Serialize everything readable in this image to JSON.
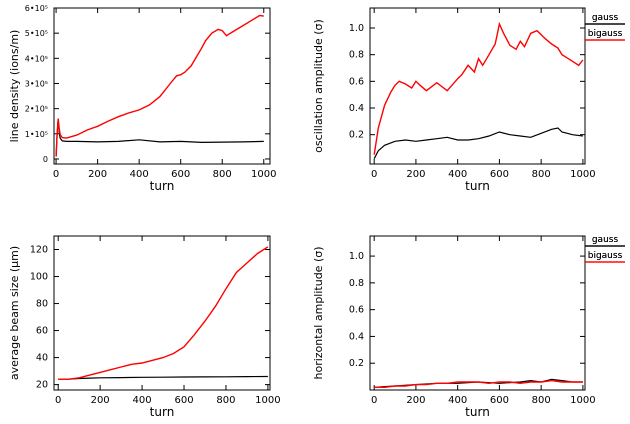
{
  "chart_data": [
    {
      "type": "line",
      "xlabel": "turn",
      "ylabel": "line density (ions/m)",
      "xlim": [
        -10,
        1030
      ],
      "ylim": [
        -20000,
        600000
      ],
      "xticks": [
        0,
        200,
        400,
        600,
        800,
        1000
      ],
      "yticks": [
        {
          "value": 0,
          "label": "0"
        },
        {
          "value": 100000,
          "label": "1•10⁵"
        },
        {
          "value": 200000,
          "label": "2•10⁵"
        },
        {
          "value": 300000,
          "label": "3•10⁵"
        },
        {
          "value": 400000,
          "label": "4•10⁵"
        },
        {
          "value": 500000,
          "label": "5•10⁵"
        },
        {
          "value": 600000,
          "label": "6•10⁵"
        }
      ],
      "legend_position": "right",
      "series": [
        {
          "name": "gauss",
          "color": "#000000",
          "x": [
            0,
            5,
            10,
            15,
            20,
            30,
            50,
            100,
            200,
            300,
            400,
            500,
            600,
            700,
            800,
            900,
            1000
          ],
          "y": [
            10000,
            95000,
            160000,
            105000,
            82000,
            72000,
            70000,
            70000,
            68000,
            70000,
            76000,
            68000,
            70000,
            66000,
            67000,
            68000,
            70000
          ]
        },
        {
          "name": "bigauss",
          "color": "#ff0000",
          "x": [
            0,
            5,
            10,
            15,
            20,
            30,
            50,
            100,
            150,
            200,
            250,
            300,
            350,
            400,
            450,
            500,
            550,
            580,
            600,
            620,
            650,
            700,
            720,
            750,
            780,
            800,
            820,
            850,
            900,
            950,
            980,
            1000
          ],
          "y": [
            10000,
            100000,
            160000,
            120000,
            97000,
            85000,
            83000,
            95000,
            115000,
            130000,
            150000,
            168000,
            183000,
            195000,
            215000,
            248000,
            300000,
            330000,
            335000,
            345000,
            370000,
            440000,
            470000,
            500000,
            515000,
            510000,
            490000,
            505000,
            530000,
            555000,
            570000,
            568000
          ]
        }
      ]
    },
    {
      "type": "line",
      "xlabel": "turn",
      "ylabel": "oscillation amplitude (σ)",
      "xlim": [
        -20,
        1010
      ],
      "ylim": [
        -0.02,
        1.15
      ],
      "xticks": [
        0,
        200,
        400,
        600,
        800,
        1000
      ],
      "yticks": [
        {
          "value": 0.2,
          "label": "0.2"
        },
        {
          "value": 0.4,
          "label": "0.4"
        },
        {
          "value": 0.6,
          "label": "0.6"
        },
        {
          "value": 0.8,
          "label": "0.8"
        },
        {
          "value": 1.0,
          "label": "1.0"
        }
      ],
      "legend_position": "right",
      "series": [
        {
          "name": "gauss",
          "color": "#000000",
          "x": [
            0,
            20,
            50,
            100,
            150,
            200,
            250,
            300,
            350,
            400,
            450,
            500,
            550,
            600,
            650,
            700,
            750,
            800,
            850,
            880,
            900,
            950,
            1000
          ],
          "y": [
            0.02,
            0.08,
            0.12,
            0.15,
            0.16,
            0.15,
            0.16,
            0.17,
            0.18,
            0.16,
            0.16,
            0.17,
            0.19,
            0.22,
            0.2,
            0.19,
            0.18,
            0.21,
            0.24,
            0.25,
            0.22,
            0.2,
            0.19
          ]
        },
        {
          "name": "bigauss",
          "color": "#ff0000",
          "x": [
            0,
            20,
            50,
            80,
            100,
            120,
            150,
            180,
            200,
            220,
            250,
            300,
            350,
            400,
            420,
            450,
            480,
            500,
            520,
            550,
            580,
            600,
            620,
            650,
            680,
            700,
            720,
            750,
            780,
            800,
            820,
            850,
            880,
            900,
            920,
            950,
            980,
            1000
          ],
          "y": [
            0.05,
            0.25,
            0.42,
            0.52,
            0.57,
            0.6,
            0.58,
            0.55,
            0.6,
            0.57,
            0.53,
            0.59,
            0.53,
            0.62,
            0.65,
            0.72,
            0.67,
            0.77,
            0.72,
            0.8,
            0.88,
            1.03,
            0.96,
            0.87,
            0.84,
            0.9,
            0.86,
            0.96,
            0.98,
            0.95,
            0.92,
            0.88,
            0.85,
            0.8,
            0.78,
            0.75,
            0.72,
            0.76
          ]
        }
      ]
    },
    {
      "type": "line",
      "xlabel": "turn",
      "ylabel": "average beam size (μm)",
      "xlim": [
        -20,
        1010
      ],
      "ylim": [
        16,
        130
      ],
      "xticks": [
        0,
        200,
        400,
        600,
        800,
        1000
      ],
      "yticks": [
        {
          "value": 20,
          "label": "20"
        },
        {
          "value": 40,
          "label": "40"
        },
        {
          "value": 60,
          "label": "60"
        },
        {
          "value": 80,
          "label": "80"
        },
        {
          "value": 100,
          "label": "100"
        },
        {
          "value": 120,
          "label": "120"
        }
      ],
      "legend_position": "right",
      "series": [
        {
          "name": "gauss",
          "color": "#000000",
          "x": [
            0,
            50,
            100,
            150,
            200,
            300,
            400,
            500,
            600,
            700,
            800,
            900,
            1000
          ],
          "y": [
            24,
            24,
            24.5,
            24.8,
            25,
            25.2,
            25.4,
            25.5,
            25.6,
            25.7,
            25.8,
            25.9,
            26
          ]
        },
        {
          "name": "bigauss",
          "color": "#ff0000",
          "x": [
            0,
            50,
            100,
            150,
            200,
            250,
            300,
            350,
            400,
            450,
            500,
            550,
            600,
            650,
            700,
            750,
            800,
            850,
            900,
            950,
            1000
          ],
          "y": [
            24,
            24,
            25,
            27,
            29,
            31,
            33,
            35,
            36,
            38,
            40,
            43,
            48,
            57,
            67,
            78,
            91,
            103,
            110,
            117,
            122
          ]
        }
      ]
    },
    {
      "type": "line",
      "xlabel": "turn",
      "ylabel": "horizontal amplitude (σ)",
      "xlim": [
        -20,
        1010
      ],
      "ylim": [
        0,
        1.15
      ],
      "xticks": [
        0,
        200,
        400,
        600,
        800,
        1000
      ],
      "yticks": [
        {
          "value": 0.2,
          "label": "0.2"
        },
        {
          "value": 0.4,
          "label": "0.4"
        },
        {
          "value": 0.6,
          "label": "0.6"
        },
        {
          "value": 0.8,
          "label": "0.8"
        },
        {
          "value": 1.0,
          "label": "1.0"
        }
      ],
      "legend_position": "right",
      "series": [
        {
          "name": "gauss",
          "color": "#000000",
          "x": [
            0,
            100,
            200,
            300,
            400,
            500,
            600,
            700,
            750,
            800,
            850,
            900,
            950,
            1000
          ],
          "y": [
            0.02,
            0.03,
            0.04,
            0.05,
            0.05,
            0.06,
            0.05,
            0.06,
            0.07,
            0.06,
            0.08,
            0.07,
            0.06,
            0.06
          ]
        },
        {
          "name": "bigauss",
          "color": "#ff0000",
          "x": [
            0,
            50,
            100,
            150,
            200,
            250,
            300,
            350,
            400,
            450,
            500,
            550,
            600,
            650,
            700,
            750,
            800,
            850,
            900,
            950,
            1000
          ],
          "y": [
            0.02,
            0.02,
            0.03,
            0.03,
            0.04,
            0.04,
            0.05,
            0.05,
            0.06,
            0.06,
            0.06,
            0.05,
            0.06,
            0.06,
            0.05,
            0.06,
            0.06,
            0.07,
            0.06,
            0.06,
            0.06
          ]
        }
      ]
    }
  ]
}
